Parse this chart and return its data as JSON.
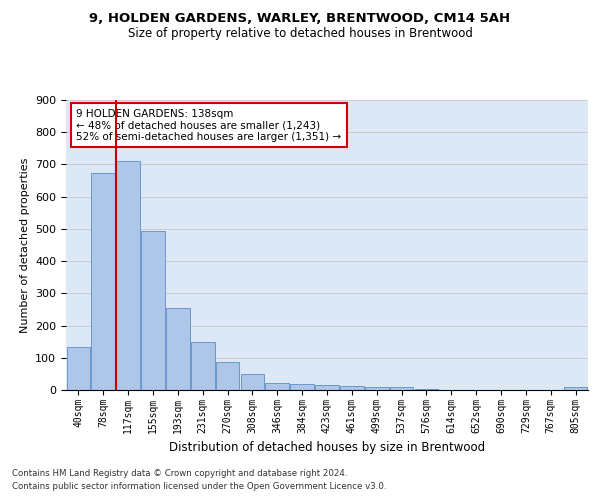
{
  "title1": "9, HOLDEN GARDENS, WARLEY, BRENTWOOD, CM14 5AH",
  "title2": "Size of property relative to detached houses in Brentwood",
  "xlabel": "Distribution of detached houses by size in Brentwood",
  "ylabel": "Number of detached properties",
  "footer1": "Contains HM Land Registry data © Crown copyright and database right 2024.",
  "footer2": "Contains public sector information licensed under the Open Government Licence v3.0.",
  "bar_labels": [
    "40sqm",
    "78sqm",
    "117sqm",
    "155sqm",
    "193sqm",
    "231sqm",
    "270sqm",
    "308sqm",
    "346sqm",
    "384sqm",
    "423sqm",
    "461sqm",
    "499sqm",
    "537sqm",
    "576sqm",
    "614sqm",
    "652sqm",
    "690sqm",
    "729sqm",
    "767sqm",
    "805sqm"
  ],
  "bar_values": [
    135,
    675,
    710,
    493,
    253,
    150,
    88,
    50,
    22,
    18,
    17,
    11,
    9,
    8,
    2,
    1,
    1,
    0,
    0,
    0,
    9
  ],
  "bar_color": "#aec6e8",
  "bar_edge_color": "#5b8fc9",
  "annotation_box_text": "9 HOLDEN GARDENS: 138sqm\n← 48% of detached houses are smaller (1,243)\n52% of semi-detached houses are larger (1,351) →",
  "vline_x": 1.5,
  "vline_color": "#cc0000",
  "annotation_box_color": "#cc0000",
  "grid_color": "#cccccc",
  "background_color": "#dce8f5",
  "ylim": [
    0,
    900
  ],
  "yticks": [
    0,
    100,
    200,
    300,
    400,
    500,
    600,
    700,
    800,
    900
  ]
}
